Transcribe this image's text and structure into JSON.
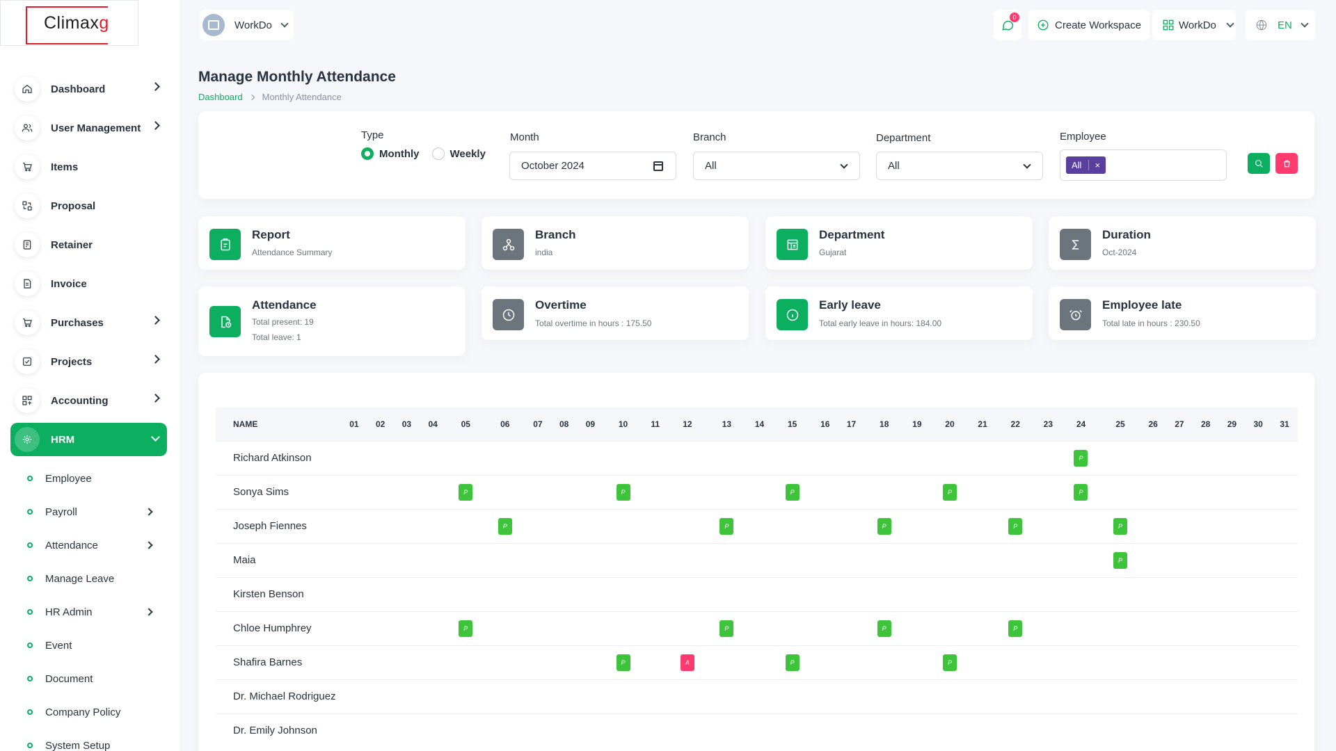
{
  "brand": {
    "logo_text_main": "Climax",
    "logo_text_accent": "g"
  },
  "header": {
    "workspace": "WorkDo",
    "chat_badge": "0",
    "create_workspace": "Create Workspace",
    "workdo_menu": "WorkDo",
    "language": "EN"
  },
  "sidebar": {
    "items": [
      {
        "label": "Dashboard",
        "icon": "home-icon",
        "chevron": true
      },
      {
        "label": "User Management",
        "icon": "users-icon",
        "chevron": true
      },
      {
        "label": "Items",
        "icon": "cart-icon",
        "chevron": false
      },
      {
        "label": "Proposal",
        "icon": "proposal-icon",
        "chevron": false
      },
      {
        "label": "Retainer",
        "icon": "retainer-icon",
        "chevron": false
      },
      {
        "label": "Invoice",
        "icon": "invoice-icon",
        "chevron": false
      },
      {
        "label": "Purchases",
        "icon": "cart-icon",
        "chevron": true
      },
      {
        "label": "Projects",
        "icon": "check-square-icon",
        "chevron": true
      },
      {
        "label": "Accounting",
        "icon": "grid-icon",
        "chevron": true
      }
    ],
    "active": {
      "label": "HRM",
      "icon": "hrm-icon"
    },
    "sub_items": [
      {
        "label": "Employee",
        "chevron": false
      },
      {
        "label": "Payroll",
        "chevron": true
      },
      {
        "label": "Attendance",
        "chevron": true
      },
      {
        "label": "Manage Leave",
        "chevron": false
      },
      {
        "label": "HR Admin",
        "chevron": true
      },
      {
        "label": "Event",
        "chevron": false
      },
      {
        "label": "Document",
        "chevron": false
      },
      {
        "label": "Company Policy",
        "chevron": false
      },
      {
        "label": "System Setup",
        "chevron": false
      }
    ]
  },
  "page": {
    "title": "Manage Monthly Attendance",
    "breadcrumb": {
      "home": "Dashboard",
      "current": "Monthly Attendance"
    }
  },
  "filters": {
    "type_label": "Type",
    "type_options": [
      "Monthly",
      "Weekly"
    ],
    "type_selected": "Monthly",
    "month_label": "Month",
    "month_value": "October 2024",
    "branch_label": "Branch",
    "branch_value": "All",
    "department_label": "Department",
    "department_value": "All",
    "employee_label": "Employee",
    "employee_tag": "All",
    "employee_tag_remove": "×"
  },
  "summary": {
    "report": {
      "title": "Report",
      "sub": "Attendance Summary"
    },
    "branch": {
      "title": "Branch",
      "sub": "india"
    },
    "department": {
      "title": "Department",
      "sub": "Gujarat"
    },
    "duration": {
      "title": "Duration",
      "sub": "Oct-2024"
    },
    "attendance": {
      "title": "Attendance",
      "sub1": "Total present: 19",
      "sub2": "Total leave: 1"
    },
    "overtime": {
      "title": "Overtime",
      "sub": "Total overtime in hours : 175.50"
    },
    "early_leave": {
      "title": "Early leave",
      "sub": "Total early leave in hours: 184.00"
    },
    "late": {
      "title": "Employee late",
      "sub": "Total late in hours : 230.50"
    }
  },
  "table": {
    "name_header": "NAME",
    "days": [
      "01",
      "02",
      "03",
      "04",
      "05",
      "06",
      "07",
      "08",
      "09",
      "10",
      "11",
      "12",
      "13",
      "14",
      "15",
      "16",
      "17",
      "18",
      "19",
      "20",
      "21",
      "22",
      "23",
      "24",
      "25",
      "26",
      "27",
      "28",
      "29",
      "30",
      "31"
    ],
    "rows": [
      {
        "name": "Richard Atkinson",
        "marks": {
          "24": "P"
        }
      },
      {
        "name": "Sonya Sims",
        "marks": {
          "05": "P",
          "10": "P",
          "15": "P",
          "20": "P",
          "24": "P"
        }
      },
      {
        "name": "Joseph Fiennes",
        "marks": {
          "06": "P",
          "13": "P",
          "18": "P",
          "22": "P",
          "25": "P"
        }
      },
      {
        "name": "Maia",
        "marks": {
          "25": "P"
        }
      },
      {
        "name": "Kirsten Benson",
        "marks": {}
      },
      {
        "name": "Chloe Humphrey",
        "marks": {
          "05": "P",
          "13": "P",
          "18": "P",
          "22": "P"
        }
      },
      {
        "name": "Shafira Barnes",
        "marks": {
          "10": "P",
          "12": "A",
          "15": "P",
          "20": "P"
        }
      },
      {
        "name": "Dr. Michael Rodriguez",
        "marks": {}
      },
      {
        "name": "Dr. Emily Johnson",
        "marks": {}
      }
    ]
  },
  "colors": {
    "accent": "#0caf60",
    "danger": "#ff3a6e",
    "present": "#3ec43b",
    "tag": "#5a3f9e"
  }
}
